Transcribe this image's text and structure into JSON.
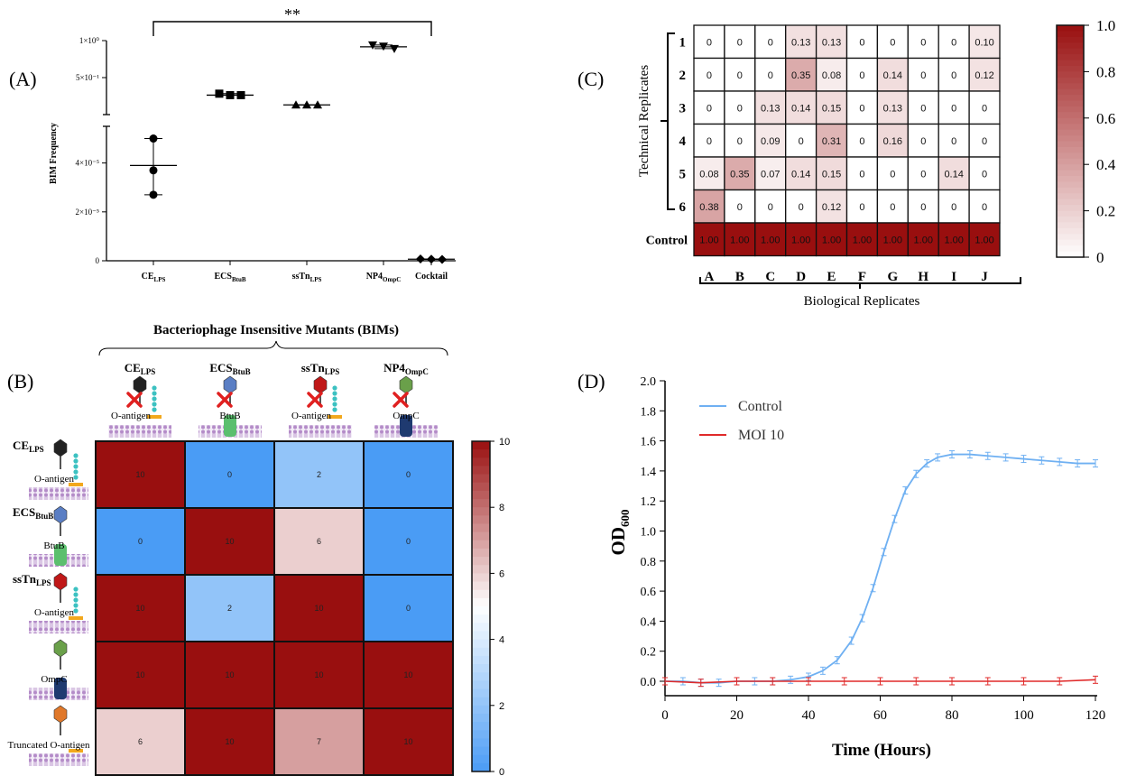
{
  "colors": {
    "heat_dark": "#990f0f",
    "heat_white": "#ffffff",
    "blue_low": "#4a9cf5",
    "control_line": "#6fb0f2",
    "moi_line": "#e02a2a",
    "membrane": "#c9a8d8",
    "phage_ce": "#222222",
    "phage_ecs": "#5a7ec4",
    "phage_sstn": "#c01818",
    "phage_np4": "#6aa04a",
    "phage_trunc": "#e0782a"
  },
  "panels": {
    "A": "(A)",
    "B": "(B)",
    "C": "(C)",
    "D": "(D)"
  },
  "chart_data": [
    {
      "panel": "A",
      "type": "scatter",
      "ylabel": "BIM Frequency",
      "categories": [
        "CE_LPS",
        "ECS_BtuB",
        "ssTn_LPS",
        "NP4_OmpC",
        "Cocktail"
      ],
      "category_display": [
        {
          "main": "CE",
          "sub": "LPS"
        },
        {
          "main": "ECS",
          "sub": "BtuB"
        },
        {
          "main": "ssTn",
          "sub": "LPS"
        },
        {
          "main": "NP4",
          "sub": "OmpC"
        },
        {
          "main": "Cocktail",
          "sub": ""
        }
      ],
      "y_ticks_upper": [
        "1×10⁰",
        "5×10⁻¹"
      ],
      "y_ticks_lower": [
        "4×10⁻⁵",
        "2×10⁻⁵",
        "0"
      ],
      "axis_break": true,
      "significance": "**",
      "points": {
        "CE_LPS": [
          5e-05,
          3.7e-05,
          2.7e-05
        ],
        "ECS_BtuB": [
          0.37,
          0.36,
          0.36
        ],
        "ssTn_LPS": [
          0.3,
          0.3,
          0.3
        ],
        "NP4_OmpC": [
          0.92,
          0.9,
          0.86
        ],
        "Cocktail": [
          7.5e-07,
          6.5e-07,
          5.5e-07
        ]
      },
      "means": {
        "CE_LPS": 3.9e-05,
        "ECS_BtuB": 0.36,
        "ssTn_LPS": 0.3,
        "NP4_OmpC": 0.89,
        "Cocktail": 6.5e-07
      },
      "markers": {
        "CE_LPS": "circle",
        "ECS_BtuB": "square",
        "ssTn_LPS": "triangle-up",
        "NP4_OmpC": "triangle-down",
        "Cocktail": "diamond"
      }
    },
    {
      "panel": "B",
      "type": "heatmap",
      "title": "Bacteriophage Insensitive Mutants (BIMs)",
      "columns": [
        {
          "main": "CE",
          "sub": "LPS",
          "receptor": "O-antigen"
        },
        {
          "main": "ECS",
          "sub": "BtuB",
          "receptor": "BtuB"
        },
        {
          "main": "ssTn",
          "sub": "LPS",
          "receptor": "O-antigen"
        },
        {
          "main": "NP4",
          "sub": "OmpC",
          "receptor": "OmpC"
        }
      ],
      "rows": [
        {
          "main": "CE",
          "sub": "LPS",
          "receptor": "O-antigen"
        },
        {
          "main": "ECS",
          "sub": "BtuB",
          "receptor": "BtuB"
        },
        {
          "main": "ssTn",
          "sub": "LPS",
          "receptor": "O-antigen"
        },
        {
          "main": "",
          "sub": "",
          "receptor": "OmpC"
        },
        {
          "main": "",
          "sub": "",
          "receptor": "Truncated O-antigen"
        }
      ],
      "values": [
        [
          10,
          0,
          2,
          0
        ],
        [
          0,
          10,
          6,
          0
        ],
        [
          10,
          2,
          10,
          0
        ],
        [
          10,
          10,
          10,
          10
        ],
        [
          6,
          10,
          7,
          10
        ]
      ],
      "colorbar_ticks": [
        "0",
        "2",
        "4",
        "6",
        "8",
        "10"
      ],
      "zlim": [
        0,
        10
      ]
    },
    {
      "panel": "C",
      "type": "heatmap",
      "xlabel": "Biological Replicates",
      "ylabel": "Technical Replicates",
      "columns": [
        "A",
        "B",
        "C",
        "D",
        "E",
        "F",
        "G",
        "H",
        "I",
        "J"
      ],
      "rows": [
        "1",
        "2",
        "3",
        "4",
        "5",
        "6",
        "Control"
      ],
      "values": [
        [
          "0",
          "0",
          "0",
          "0.13",
          "0.13",
          "0",
          "0",
          "0",
          "0",
          "0.10"
        ],
        [
          "0",
          "0",
          "0",
          "0.35",
          "0.08",
          "0",
          "0.14",
          "0",
          "0",
          "0.12"
        ],
        [
          "0",
          "0",
          "0.13",
          "0.14",
          "0.15",
          "0",
          "0.13",
          "0",
          "0",
          "0"
        ],
        [
          "0",
          "0",
          "0.09",
          "0",
          "0.31",
          "0",
          "0.16",
          "0",
          "0",
          "0"
        ],
        [
          "0.08",
          "0.35",
          "0.07",
          "0.14",
          "0.15",
          "0",
          "0",
          "0",
          "0.14",
          "0"
        ],
        [
          "0.38",
          "0",
          "0",
          "0",
          "0.12",
          "0",
          "0",
          "0",
          "0",
          "0"
        ],
        [
          "1.00",
          "1.00",
          "1.00",
          "1.00",
          "1.00",
          "1.00",
          "1.00",
          "1.00",
          "1.00",
          "1.00"
        ]
      ],
      "colorbar_ticks": [
        "1.0",
        "0.8",
        "0.6",
        "0.4",
        "0.2",
        "0"
      ],
      "zlim": [
        0,
        1
      ]
    },
    {
      "panel": "D",
      "type": "line",
      "xlabel": "Time (Hours)",
      "ylabel_main": "OD",
      "ylabel_sub": "600",
      "xlim": [
        0,
        120
      ],
      "ylim": [
        0,
        2.0
      ],
      "x_ticks": [
        "0",
        "20",
        "40",
        "60",
        "80",
        "100",
        "120"
      ],
      "y_ticks": [
        "0.0",
        "0.2",
        "0.4",
        "0.6",
        "0.8",
        "1.0",
        "1.2",
        "1.4",
        "1.6",
        "1.8",
        "2.0"
      ],
      "legend": "top-left",
      "series": [
        {
          "name": "Control",
          "x": [
            0,
            5,
            10,
            15,
            20,
            25,
            30,
            35,
            40,
            44,
            48,
            52,
            55,
            58,
            61,
            64,
            67,
            70,
            73,
            76,
            80,
            85,
            90,
            95,
            100,
            105,
            110,
            115,
            120
          ],
          "y": [
            0.0,
            0.0,
            -0.01,
            -0.01,
            0.0,
            0.0,
            0.0,
            0.01,
            0.03,
            0.07,
            0.14,
            0.27,
            0.42,
            0.62,
            0.86,
            1.08,
            1.27,
            1.38,
            1.45,
            1.49,
            1.51,
            1.51,
            1.5,
            1.49,
            1.48,
            1.47,
            1.46,
            1.45,
            1.45
          ]
        },
        {
          "name": "MOI 10",
          "x": [
            0,
            10,
            20,
            30,
            40,
            50,
            60,
            70,
            80,
            90,
            100,
            110,
            120
          ],
          "y": [
            0.0,
            -0.01,
            0.0,
            0.0,
            0.0,
            0.0,
            0.0,
            0.0,
            0.0,
            0.0,
            0.0,
            0.0,
            0.01
          ]
        }
      ]
    }
  ]
}
